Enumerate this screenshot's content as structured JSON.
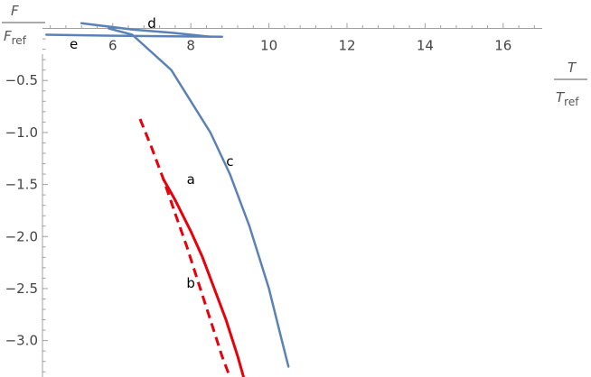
{
  "chart_data": {
    "type": "line",
    "xlabel": {
      "main": "T",
      "sub_main": "T",
      "sub": "ref"
    },
    "ylabel": {
      "main": "F",
      "sub_main": "F",
      "sub": "ref"
    },
    "xlim": [
      4.2,
      17.0
    ],
    "ylim": [
      -3.35,
      0.1
    ],
    "xticks": [
      6,
      8,
      10,
      12,
      14,
      16
    ],
    "xtick_labels": [
      "6",
      "8",
      "10",
      "12",
      "14",
      "16"
    ],
    "yticks": [
      -0.5,
      -1.0,
      -1.5,
      -2.0,
      -2.5,
      -3.0
    ],
    "ytick_labels": [
      "−0.5",
      "−1.0",
      "−1.5",
      "−2.0",
      "−2.5",
      "−3.0"
    ],
    "grid": false,
    "colors": {
      "red": "#e8000b",
      "blue": "#5b82b8",
      "axis": "#a0a0a0"
    },
    "series": [
      {
        "label": "a",
        "color": "#e8000b",
        "style": "solid",
        "x": [
          7.3,
          7.6,
          8.0,
          8.3,
          8.6,
          8.9,
          9.2,
          9.35
        ],
        "y": [
          -1.45,
          -1.65,
          -1.95,
          -2.2,
          -2.5,
          -2.8,
          -3.15,
          -3.35
        ]
      },
      {
        "label": "b",
        "color": "#e8000b",
        "style": "dashed",
        "x": [
          6.7,
          7.0,
          7.3,
          7.6,
          7.9,
          8.2,
          8.5,
          8.8,
          9.0
        ],
        "y": [
          -0.87,
          -1.15,
          -1.45,
          -1.78,
          -2.1,
          -2.45,
          -2.8,
          -3.15,
          -3.35
        ]
      },
      {
        "label": "c",
        "color": "#5b82b8",
        "style": "solid",
        "x": [
          5.9,
          6.5,
          7.5,
          8.5,
          9.0,
          9.5,
          10.0,
          10.3,
          10.5
        ],
        "y": [
          0.0,
          -0.06,
          -0.4,
          -1.0,
          -1.4,
          -1.9,
          -2.5,
          -2.95,
          -3.25
        ]
      },
      {
        "label": "d",
        "color": "#5b82b8",
        "style": "solid",
        "x": [
          5.2,
          6.5,
          7.5,
          8.5
        ],
        "y": [
          0.05,
          -0.01,
          -0.04,
          -0.08
        ]
      },
      {
        "label": "e",
        "color": "#5b82b8",
        "style": "solid",
        "x": [
          4.3,
          6.0,
          7.5,
          8.8
        ],
        "y": [
          -0.06,
          -0.07,
          -0.075,
          -0.08
        ]
      }
    ],
    "annotations": [
      {
        "text": "a",
        "x": 8.0,
        "y": -1.45
      },
      {
        "text": "b",
        "x": 8.0,
        "y": -2.45
      },
      {
        "text": "c",
        "x": 9.0,
        "y": -1.28
      },
      {
        "text": "d",
        "x": 7.0,
        "y": 0.05
      },
      {
        "text": "e",
        "x": 5.0,
        "y": -0.15
      }
    ]
  }
}
